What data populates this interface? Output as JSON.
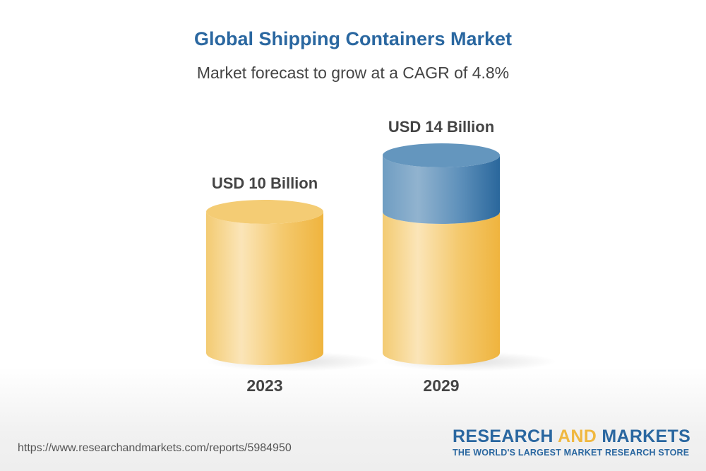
{
  "chart_data": {
    "type": "bar",
    "style": "3d-cylinder",
    "title": "Global Shipping Containers Market",
    "subtitle": "Market forecast to grow at a CAGR of 4.8%",
    "categories": [
      "2023",
      "2029"
    ],
    "values": [
      10,
      14
    ],
    "value_labels": [
      "USD 10 Billion",
      "USD 14 Billion"
    ],
    "unit": "USD Billion",
    "colors": {
      "base": "#f2c35a",
      "growth": "#2a67a0"
    }
  },
  "footer": {
    "url": "https://www.researchandmarkets.com/reports/5984950",
    "logo": {
      "part1": "RESEARCH ",
      "part2": "AND",
      "part3": " MARKETS",
      "tagline": "THE WORLD'S LARGEST MARKET RESEARCH STORE"
    }
  }
}
